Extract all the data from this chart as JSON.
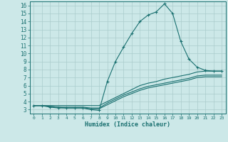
{
  "xlabel": "Humidex (Indice chaleur)",
  "bg_color": "#cce8e8",
  "grid_color": "#aacccc",
  "line_color": "#1a7070",
  "xlim": [
    -0.5,
    23.5
  ],
  "ylim": [
    2.5,
    16.5
  ],
  "x_ticks": [
    0,
    1,
    2,
    3,
    4,
    5,
    6,
    7,
    8,
    9,
    10,
    11,
    12,
    13,
    14,
    15,
    16,
    17,
    18,
    19,
    20,
    21,
    22,
    23
  ],
  "y_ticks": [
    3,
    4,
    5,
    6,
    7,
    8,
    9,
    10,
    11,
    12,
    13,
    14,
    15,
    16
  ],
  "series1_x": [
    0,
    1,
    2,
    3,
    4,
    5,
    6,
    7,
    8,
    9,
    10,
    11,
    12,
    13,
    14,
    15,
    16,
    17,
    18,
    19,
    20,
    21,
    22,
    23
  ],
  "series1_y": [
    3.5,
    3.5,
    3.3,
    3.2,
    3.2,
    3.2,
    3.2,
    3.0,
    2.9,
    6.5,
    9.0,
    10.8,
    12.5,
    14.0,
    14.8,
    15.2,
    16.2,
    15.0,
    11.5,
    9.3,
    8.3,
    7.9,
    7.8,
    7.8
  ],
  "series2_x": [
    0,
    1,
    2,
    3,
    4,
    5,
    6,
    7,
    8,
    9,
    10,
    11,
    12,
    13,
    14,
    15,
    16,
    17,
    18,
    19,
    20,
    21,
    22,
    23
  ],
  "series2_y": [
    3.5,
    3.5,
    3.5,
    3.5,
    3.5,
    3.5,
    3.5,
    3.5,
    3.5,
    4.0,
    4.5,
    5.0,
    5.5,
    6.0,
    6.3,
    6.5,
    6.8,
    7.0,
    7.2,
    7.4,
    7.7,
    7.8,
    7.8,
    7.8
  ],
  "series3_x": [
    0,
    1,
    2,
    3,
    4,
    5,
    6,
    7,
    8,
    9,
    10,
    11,
    12,
    13,
    14,
    15,
    16,
    17,
    18,
    19,
    20,
    21,
    22,
    23
  ],
  "series3_y": [
    3.5,
    3.5,
    3.4,
    3.3,
    3.3,
    3.3,
    3.3,
    3.2,
    3.2,
    3.8,
    4.3,
    4.8,
    5.2,
    5.6,
    5.9,
    6.1,
    6.3,
    6.5,
    6.7,
    6.9,
    7.2,
    7.3,
    7.3,
    7.3
  ],
  "series4_x": [
    0,
    1,
    2,
    3,
    4,
    5,
    6,
    7,
    8,
    9,
    10,
    11,
    12,
    13,
    14,
    15,
    16,
    17,
    18,
    19,
    20,
    21,
    22,
    23
  ],
  "series4_y": [
    3.5,
    3.5,
    3.4,
    3.3,
    3.2,
    3.2,
    3.2,
    3.1,
    3.1,
    3.6,
    4.1,
    4.6,
    5.0,
    5.4,
    5.7,
    5.9,
    6.1,
    6.3,
    6.5,
    6.7,
    7.0,
    7.1,
    7.1,
    7.1
  ]
}
